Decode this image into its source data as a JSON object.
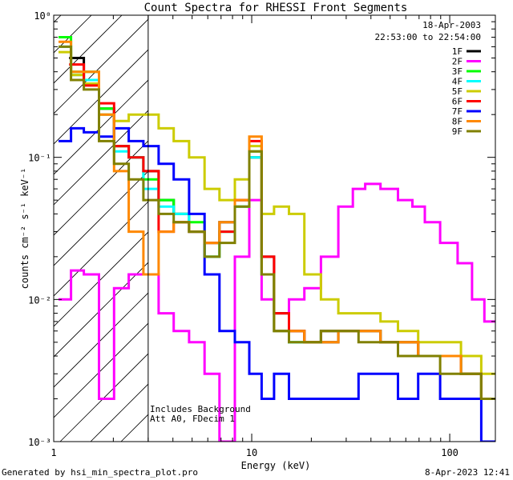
{
  "chart_data": {
    "type": "line",
    "title": "Count Spectra for RHESSI Front Segments",
    "xlabel": "Energy (keV)",
    "ylabel": "counts cm⁻² s⁻¹ keV⁻¹",
    "xscale": "log",
    "yscale": "log",
    "xlim": [
      1,
      170
    ],
    "ylim": [
      0.001,
      1
    ],
    "x_ticks": [
      "1",
      "10",
      "100"
    ],
    "y_ticks": [
      "10⁻³",
      "10⁻²",
      "10⁻¹",
      "10⁰"
    ],
    "date": "18-Apr-2003",
    "time_range": "22:53:00 to 22:54:00",
    "annotations": [
      "Includes Background",
      "Att A0, FDecim 1"
    ],
    "hatched_region": [
      1,
      3
    ],
    "legend_position": "top-right",
    "series": [
      {
        "name": "1F",
        "color": "#000000",
        "points": [
          [
            1.3,
            0.5
          ],
          [
            1.55,
            0.35
          ],
          [
            1.85,
            0.22
          ],
          [
            2.2,
            0.12
          ],
          [
            2.6,
            0.1
          ],
          [
            3.1,
            0.08
          ],
          [
            3.7,
            0.05
          ],
          [
            4.4,
            0.04
          ],
          [
            5.3,
            0.03
          ],
          [
            6.3,
            0.025
          ],
          [
            7.5,
            0.035
          ],
          [
            9,
            0.05
          ],
          [
            10.5,
            0.1
          ],
          [
            12,
            0.02
          ],
          [
            14,
            0.008
          ],
          [
            17,
            0.006
          ],
          [
            20,
            0.005
          ],
          [
            25,
            0.005
          ],
          [
            30,
            0.006
          ],
          [
            40,
            0.006
          ],
          [
            50,
            0.005
          ],
          [
            60,
            0.005
          ],
          [
            80,
            0.004
          ],
          [
            100,
            0.004
          ],
          [
            130,
            0.003
          ],
          [
            160,
            0.002
          ]
        ]
      },
      {
        "name": "2F",
        "color": "#ff00ff",
        "points": [
          [
            1.15,
            0.01
          ],
          [
            1.3,
            0.016
          ],
          [
            1.55,
            0.015
          ],
          [
            1.85,
            0.002
          ],
          [
            2.2,
            0.012
          ],
          [
            2.6,
            0.015
          ],
          [
            3.1,
            0.015
          ],
          [
            3.7,
            0.008
          ],
          [
            4.4,
            0.006
          ],
          [
            5.3,
            0.005
          ],
          [
            6.3,
            0.003
          ],
          [
            7.5,
            0.001
          ],
          [
            9,
            0.02
          ],
          [
            10.5,
            0.05
          ],
          [
            12,
            0.01
          ],
          [
            14,
            0.006
          ],
          [
            17,
            0.01
          ],
          [
            20,
            0.012
          ],
          [
            25,
            0.02
          ],
          [
            30,
            0.045
          ],
          [
            35,
            0.06
          ],
          [
            40,
            0.065
          ],
          [
            50,
            0.06
          ],
          [
            60,
            0.05
          ],
          [
            70,
            0.045
          ],
          [
            80,
            0.035
          ],
          [
            100,
            0.025
          ],
          [
            120,
            0.018
          ],
          [
            140,
            0.01
          ],
          [
            160,
            0.007
          ]
        ]
      },
      {
        "name": "3F",
        "color": "#00ff00",
        "points": [
          [
            1.15,
            0.7
          ],
          [
            1.3,
            0.4
          ],
          [
            1.55,
            0.4
          ],
          [
            1.85,
            0.22
          ],
          [
            2.2,
            0.12
          ],
          [
            2.6,
            0.1
          ],
          [
            3.1,
            0.07
          ],
          [
            3.7,
            0.05
          ],
          [
            4.4,
            0.04
          ],
          [
            5.3,
            0.035
          ],
          [
            6.3,
            0.02
          ],
          [
            7.5,
            0.03
          ],
          [
            9,
            0.045
          ],
          [
            10.5,
            0.11
          ],
          [
            12,
            0.015
          ],
          [
            14,
            0.006
          ],
          [
            17,
            0.005
          ],
          [
            20,
            0.005
          ],
          [
            25,
            0.006
          ],
          [
            30,
            0.006
          ],
          [
            40,
            0.006
          ],
          [
            50,
            0.005
          ],
          [
            60,
            0.005
          ],
          [
            80,
            0.004
          ],
          [
            100,
            0.004
          ],
          [
            130,
            0.003
          ],
          [
            160,
            0.002
          ]
        ]
      },
      {
        "name": "4F",
        "color": "#00ffff",
        "points": [
          [
            1.15,
            0.6
          ],
          [
            1.3,
            0.38
          ],
          [
            1.55,
            0.35
          ],
          [
            1.85,
            0.2
          ],
          [
            2.2,
            0.11
          ],
          [
            2.6,
            0.1
          ],
          [
            3.1,
            0.06
          ],
          [
            3.7,
            0.045
          ],
          [
            4.4,
            0.04
          ],
          [
            5.3,
            0.03
          ],
          [
            6.3,
            0.02
          ],
          [
            7.5,
            0.03
          ],
          [
            9,
            0.045
          ],
          [
            10.5,
            0.1
          ],
          [
            12,
            0.015
          ],
          [
            14,
            0.006
          ],
          [
            17,
            0.005
          ],
          [
            20,
            0.005
          ],
          [
            25,
            0.006
          ],
          [
            30,
            0.006
          ],
          [
            40,
            0.006
          ],
          [
            50,
            0.005
          ],
          [
            60,
            0.005
          ],
          [
            80,
            0.004
          ],
          [
            100,
            0.004
          ],
          [
            130,
            0.003
          ],
          [
            160,
            0.002
          ]
        ]
      },
      {
        "name": "5F",
        "color": "#cccc00",
        "points": [
          [
            1.15,
            0.55
          ],
          [
            1.3,
            0.38
          ],
          [
            1.55,
            0.33
          ],
          [
            1.85,
            0.2
          ],
          [
            2.2,
            0.18
          ],
          [
            2.6,
            0.2
          ],
          [
            3.1,
            0.2
          ],
          [
            3.7,
            0.16
          ],
          [
            4.4,
            0.13
          ],
          [
            5.3,
            0.1
          ],
          [
            6.3,
            0.06
          ],
          [
            7.5,
            0.05
          ],
          [
            9,
            0.07
          ],
          [
            10.5,
            0.12
          ],
          [
            12,
            0.04
          ],
          [
            14,
            0.045
          ],
          [
            17,
            0.04
          ],
          [
            20,
            0.015
          ],
          [
            25,
            0.01
          ],
          [
            30,
            0.008
          ],
          [
            40,
            0.008
          ],
          [
            50,
            0.007
          ],
          [
            60,
            0.006
          ],
          [
            80,
            0.005
          ],
          [
            100,
            0.005
          ],
          [
            130,
            0.004
          ],
          [
            160,
            0.003
          ]
        ]
      },
      {
        "name": "6F",
        "color": "#ff0000",
        "points": [
          [
            1.3,
            0.45
          ],
          [
            1.55,
            0.32
          ],
          [
            1.85,
            0.24
          ],
          [
            2.2,
            0.12
          ],
          [
            2.6,
            0.1
          ],
          [
            3.1,
            0.08
          ],
          [
            3.7,
            0.03
          ],
          [
            4.4,
            0.035
          ],
          [
            5.3,
            0.03
          ],
          [
            6.3,
            0.025
          ],
          [
            7.5,
            0.03
          ],
          [
            9,
            0.05
          ],
          [
            10.5,
            0.13
          ],
          [
            12,
            0.02
          ],
          [
            14,
            0.008
          ],
          [
            17,
            0.006
          ],
          [
            20,
            0.005
          ],
          [
            25,
            0.006
          ],
          [
            30,
            0.006
          ],
          [
            40,
            0.006
          ],
          [
            50,
            0.005
          ],
          [
            60,
            0.005
          ],
          [
            80,
            0.004
          ],
          [
            100,
            0.004
          ],
          [
            130,
            0.003
          ],
          [
            160,
            0.002
          ]
        ]
      },
      {
        "name": "7F",
        "color": "#0000ff",
        "points": [
          [
            1.15,
            0.13
          ],
          [
            1.3,
            0.16
          ],
          [
            1.55,
            0.15
          ],
          [
            1.85,
            0.14
          ],
          [
            2.2,
            0.16
          ],
          [
            2.6,
            0.13
          ],
          [
            3.1,
            0.12
          ],
          [
            3.7,
            0.09
          ],
          [
            4.4,
            0.07
          ],
          [
            5.3,
            0.04
          ],
          [
            6.3,
            0.015
          ],
          [
            7.5,
            0.006
          ],
          [
            9,
            0.005
          ],
          [
            10.5,
            0.003
          ],
          [
            12,
            0.002
          ],
          [
            14,
            0.003
          ],
          [
            17,
            0.002
          ],
          [
            20,
            0.002
          ],
          [
            25,
            0.002
          ],
          [
            30,
            0.002
          ],
          [
            40,
            0.003
          ],
          [
            50,
            0.003
          ],
          [
            60,
            0.002
          ],
          [
            80,
            0.003
          ],
          [
            100,
            0.002
          ],
          [
            130,
            0.002
          ],
          [
            160,
            0.001
          ]
        ]
      },
      {
        "name": "8F",
        "color": "#ff8800",
        "points": [
          [
            1.15,
            0.65
          ],
          [
            1.3,
            0.4
          ],
          [
            1.55,
            0.4
          ],
          [
            1.85,
            0.2
          ],
          [
            2.2,
            0.08
          ],
          [
            2.6,
            0.03
          ],
          [
            3.1,
            0.015
          ],
          [
            3.7,
            0.03
          ],
          [
            4.4,
            0.035
          ],
          [
            5.3,
            0.03
          ],
          [
            6.3,
            0.025
          ],
          [
            7.5,
            0.035
          ],
          [
            9,
            0.05
          ],
          [
            10.5,
            0.14
          ],
          [
            12,
            0.015
          ],
          [
            14,
            0.006
          ],
          [
            17,
            0.006
          ],
          [
            20,
            0.005
          ],
          [
            25,
            0.005
          ],
          [
            30,
            0.006
          ],
          [
            40,
            0.006
          ],
          [
            50,
            0.005
          ],
          [
            60,
            0.005
          ],
          [
            80,
            0.004
          ],
          [
            100,
            0.004
          ],
          [
            130,
            0.003
          ],
          [
            160,
            0.002
          ]
        ]
      },
      {
        "name": "9F",
        "color": "#808000",
        "points": [
          [
            1.15,
            0.6
          ],
          [
            1.3,
            0.35
          ],
          [
            1.55,
            0.3
          ],
          [
            1.85,
            0.13
          ],
          [
            2.2,
            0.09
          ],
          [
            2.6,
            0.07
          ],
          [
            3.1,
            0.05
          ],
          [
            3.7,
            0.04
          ],
          [
            4.4,
            0.035
          ],
          [
            5.3,
            0.03
          ],
          [
            6.3,
            0.02
          ],
          [
            7.5,
            0.025
          ],
          [
            9,
            0.045
          ],
          [
            10.5,
            0.11
          ],
          [
            12,
            0.015
          ],
          [
            14,
            0.006
          ],
          [
            17,
            0.005
          ],
          [
            20,
            0.005
          ],
          [
            25,
            0.006
          ],
          [
            30,
            0.006
          ],
          [
            40,
            0.005
          ],
          [
            50,
            0.005
          ],
          [
            60,
            0.004
          ],
          [
            80,
            0.004
          ],
          [
            100,
            0.003
          ],
          [
            130,
            0.003
          ],
          [
            160,
            0.002
          ]
        ]
      }
    ]
  },
  "footer": {
    "generated_by": "Generated by hsi_min_spectra_plot.pro",
    "timestamp": "8-Apr-2023 12:41"
  }
}
